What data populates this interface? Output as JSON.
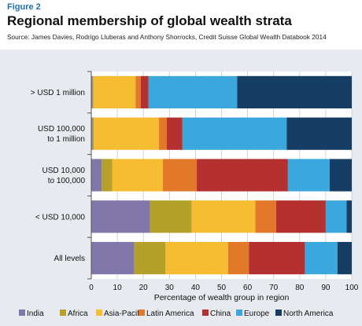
{
  "figure_label": "Figure 2",
  "title": "Regional membership of global wealth strata",
  "source": "Source: James Davies, Rodrigo Lluberas and Anthony Shorrocks, Credit Suisse Global Wealth Databook 2014",
  "chart_data": {
    "type": "bar",
    "orientation": "horizontal",
    "stacked": true,
    "categories": [
      "> USD 1 million",
      "USD 100,000 to 1 million",
      "USD 10,000 to 100,000",
      "< USD 10,000",
      "All levels"
    ],
    "category_lines": [
      [
        "> USD 1 million"
      ],
      [
        "USD 100,000",
        "to 1 million"
      ],
      [
        "USD 10,000",
        "to 100,000"
      ],
      [
        "< USD 10,000"
      ],
      [
        "All levels"
      ]
    ],
    "series": [
      {
        "name": "India",
        "color": "#8177a9",
        "values": [
          0.5,
          0.5,
          4,
          22.5,
          16.5
        ]
      },
      {
        "name": "Africa",
        "color": "#b5a12a",
        "values": [
          0.3,
          0.5,
          4,
          16,
          12
        ]
      },
      {
        "name": "Asia-Pacific",
        "color": "#f6bd33",
        "values": [
          16.2,
          25,
          19.5,
          24.5,
          24
        ]
      },
      {
        "name": "Latin America",
        "color": "#e2782a",
        "values": [
          2,
          3,
          13,
          8,
          8
        ]
      },
      {
        "name": "China",
        "color": "#b53030",
        "values": [
          3,
          6,
          35,
          19,
          21.5
        ]
      },
      {
        "name": "Europe",
        "color": "#3aa8dc",
        "values": [
          34,
          40,
          16,
          8,
          12.5
        ]
      },
      {
        "name": "North America",
        "color": "#163d63",
        "values": [
          44,
          25,
          8.5,
          2,
          5.5
        ]
      }
    ],
    "xlabel": "Percentage of wealth group in region",
    "ylabel": "",
    "xlim": [
      0,
      100
    ],
    "xticks": [
      0,
      10,
      20,
      30,
      40,
      50,
      60,
      70,
      80,
      90,
      100
    ],
    "grid": true,
    "legend": "bottom"
  }
}
